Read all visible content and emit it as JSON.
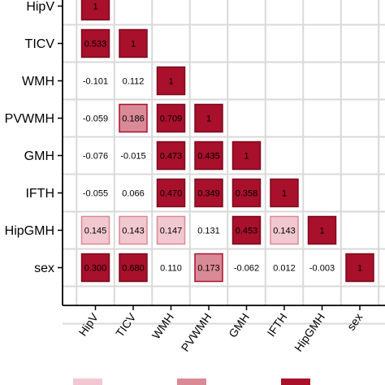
{
  "chart_data": {
    "type": "heatmap",
    "variables": [
      "HipV",
      "TICV",
      "WMH",
      "PVWMH",
      "GMH",
      "IFTH",
      "HipGMH",
      "sex"
    ],
    "matrix": [
      [
        "1"
      ],
      [
        "0.533",
        "1"
      ],
      [
        "-0.101",
        "0.112",
        "1"
      ],
      [
        "-0.059",
        "0.186",
        "0.709",
        "1"
      ],
      [
        "-0.076",
        "-0.015",
        "0.473",
        "0.435",
        "1"
      ],
      [
        "-0.055",
        "0.066",
        "0.470",
        "0.349",
        "0.358",
        "1"
      ],
      [
        "0.145",
        "0.143",
        "0.147",
        "0.131",
        "0.453",
        "0.143",
        "1"
      ],
      [
        "0.300",
        "0.680",
        "0.110",
        "0.173",
        "-0.062",
        "0.012",
        "-0.003",
        "1"
      ]
    ],
    "significance": [
      [
        3
      ],
      [
        3,
        3
      ],
      [
        0,
        0,
        3
      ],
      [
        0,
        2,
        3,
        3
      ],
      [
        0,
        0,
        3,
        3,
        3
      ],
      [
        0,
        0,
        3,
        3,
        3,
        3
      ],
      [
        1,
        1,
        1,
        0,
        3,
        1,
        3
      ],
      [
        3,
        3,
        0,
        2,
        0,
        0,
        0,
        3
      ]
    ],
    "legend_swatch_colors": [
      "#f2c8d0",
      "#d98a96",
      "#a8102c"
    ],
    "grid": true
  }
}
